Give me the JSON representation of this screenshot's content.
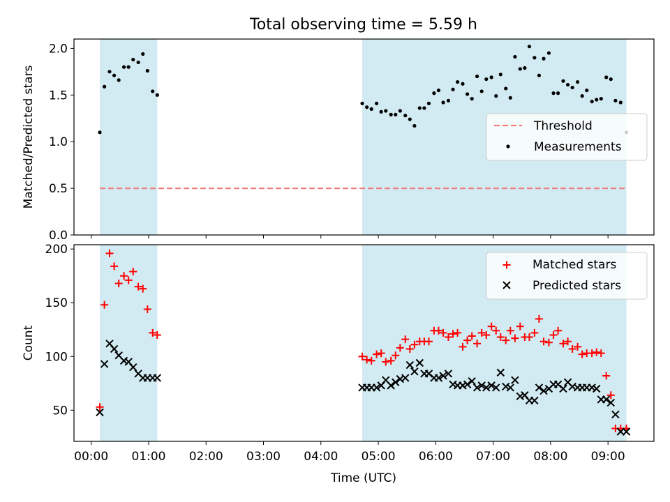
{
  "figure_title": "Total observing time = 5.59 h",
  "colors": {
    "shade": "#add8e6",
    "threshold": "#f08080",
    "matched": "#ff0000",
    "predicted": "#000000",
    "measurement": "#000000"
  },
  "chart_data": [
    {
      "type": "scatter",
      "panel": "top",
      "ylabel": "Matched/Predicted stars",
      "xlim": [
        -0.3,
        9.8
      ],
      "ylim": [
        0,
        2.1
      ],
      "yticks": [
        0.0,
        0.5,
        1.0,
        1.5,
        2.0
      ],
      "ytick_labels": [
        "0.0",
        "0.5",
        "1.0",
        "1.5",
        "2.0"
      ],
      "shaded_spans": [
        [
          0.15,
          1.15
        ],
        [
          4.72,
          9.32
        ]
      ],
      "threshold": {
        "name": "Threshold",
        "y": 0.5,
        "x_range": [
          0.15,
          9.32
        ]
      },
      "legend": {
        "placement": "center-right",
        "entries": [
          "Threshold",
          "Measurements"
        ]
      },
      "series": [
        {
          "name": "Measurements",
          "x": [
            0.15,
            0.23,
            0.32,
            0.4,
            0.48,
            0.57,
            0.65,
            0.73,
            0.82,
            0.9,
            0.98,
            1.07,
            1.15,
            4.72,
            4.8,
            4.88,
            4.97,
            5.05,
            5.13,
            5.22,
            5.3,
            5.38,
            5.47,
            5.55,
            5.63,
            5.72,
            5.8,
            5.88,
            5.97,
            6.05,
            6.13,
            6.22,
            6.3,
            6.38,
            6.47,
            6.55,
            6.63,
            6.72,
            6.8,
            6.88,
            6.97,
            7.05,
            7.13,
            7.22,
            7.3,
            7.38,
            7.47,
            7.55,
            7.63,
            7.72,
            7.8,
            7.88,
            7.97,
            8.05,
            8.13,
            8.22,
            8.3,
            8.38,
            8.47,
            8.55,
            8.63,
            8.72,
            8.8,
            8.88,
            8.97,
            9.05,
            9.13,
            9.22,
            9.32
          ],
          "y": [
            1.1,
            1.59,
            1.75,
            1.71,
            1.66,
            1.8,
            1.8,
            1.88,
            1.85,
            1.94,
            1.76,
            1.54,
            1.5,
            1.41,
            1.37,
            1.35,
            1.41,
            1.32,
            1.33,
            1.29,
            1.29,
            1.33,
            1.28,
            1.24,
            1.17,
            1.36,
            1.36,
            1.41,
            1.52,
            1.55,
            1.42,
            1.44,
            1.56,
            1.64,
            1.62,
            1.51,
            1.46,
            1.7,
            1.54,
            1.67,
            1.69,
            1.49,
            1.72,
            1.57,
            1.47,
            1.91,
            1.78,
            1.79,
            2.02,
            1.9,
            1.71,
            1.89,
            1.95,
            1.52,
            1.52,
            1.65,
            1.61,
            1.58,
            1.64,
            1.49,
            1.55,
            1.43,
            1.45,
            1.46,
            1.69,
            1.67,
            1.44,
            1.42,
            1.1
          ]
        }
      ]
    },
    {
      "type": "scatter",
      "panel": "bottom",
      "xlabel": "Time (UTC)",
      "ylabel": "Count",
      "xlim": [
        -0.3,
        9.8
      ],
      "ylim": [
        21,
        204
      ],
      "xticks": [
        0,
        1,
        2,
        3,
        4,
        5,
        6,
        7,
        8,
        9
      ],
      "xtick_labels": [
        "00:00",
        "01:00",
        "02:00",
        "03:00",
        "04:00",
        "05:00",
        "06:00",
        "07:00",
        "08:00",
        "09:00"
      ],
      "yticks": [
        50,
        100,
        150,
        200
      ],
      "ytick_labels": [
        "50",
        "100",
        "150",
        "200"
      ],
      "shaded_spans": [
        [
          0.15,
          1.15
        ],
        [
          4.72,
          9.32
        ]
      ],
      "legend": {
        "placement": "top-right",
        "entries": [
          "Matched stars",
          "Predicted stars"
        ]
      },
      "x": [
        0.15,
        0.23,
        0.32,
        0.4,
        0.48,
        0.57,
        0.65,
        0.73,
        0.82,
        0.9,
        0.98,
        1.07,
        1.15,
        4.72,
        4.8,
        4.88,
        4.97,
        5.05,
        5.13,
        5.22,
        5.3,
        5.38,
        5.47,
        5.55,
        5.63,
        5.72,
        5.8,
        5.88,
        5.97,
        6.05,
        6.13,
        6.22,
        6.3,
        6.38,
        6.47,
        6.55,
        6.63,
        6.72,
        6.8,
        6.88,
        6.97,
        7.05,
        7.13,
        7.22,
        7.3,
        7.38,
        7.47,
        7.55,
        7.63,
        7.72,
        7.8,
        7.88,
        7.97,
        8.05,
        8.13,
        8.22,
        8.3,
        8.38,
        8.47,
        8.55,
        8.63,
        8.72,
        8.8,
        8.88,
        8.97,
        9.05,
        9.13,
        9.22,
        9.32
      ],
      "series": [
        {
          "name": "Matched stars",
          "marker": "plus",
          "values": [
            53,
            148,
            196,
            184,
            168,
            175,
            171,
            179,
            165,
            163,
            144,
            122,
            120,
            100,
            97,
            96,
            102,
            103,
            95,
            96,
            101,
            108,
            116,
            107,
            111,
            114,
            114,
            114,
            124,
            124,
            122,
            118,
            121,
            122,
            109,
            115,
            119,
            112,
            122,
            120,
            128,
            124,
            118,
            115,
            124,
            117,
            128,
            118,
            118,
            122,
            135,
            114,
            113,
            120,
            124,
            112,
            114,
            107,
            109,
            102,
            103,
            103,
            104,
            103,
            82,
            64,
            33,
            33,
            33
          ]
        },
        {
          "name": "Predicted stars",
          "marker": "x",
          "values": [
            48,
            93,
            112,
            107,
            101,
            96,
            95,
            90,
            84,
            80,
            80,
            80,
            80,
            71,
            71,
            71,
            71,
            73,
            78,
            73,
            76,
            79,
            80,
            92,
            86,
            94,
            84,
            84,
            80,
            80,
            82,
            84,
            74,
            73,
            73,
            74,
            77,
            71,
            73,
            71,
            73,
            71,
            85,
            72,
            71,
            78,
            63,
            64,
            59,
            59,
            71,
            68,
            70,
            74,
            74,
            70,
            76,
            72,
            71,
            71,
            71,
            71,
            70,
            60,
            60,
            57,
            46,
            30,
            30
          ]
        }
      ]
    }
  ]
}
